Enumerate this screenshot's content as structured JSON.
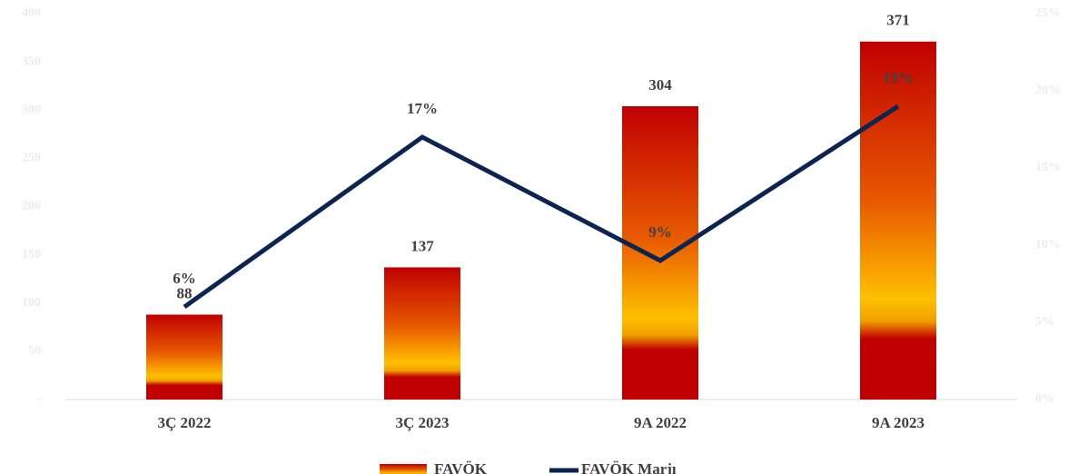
{
  "chart_data": {
    "type": "bar",
    "categories": [
      "3Ç 2022",
      "3Ç 2023",
      "9A 2022",
      "9A 2023"
    ],
    "series": [
      {
        "name": "FAVÖK",
        "color": "#c00000",
        "values": [
          88,
          137,
          304,
          371
        ]
      },
      {
        "name": "FAVÖK Marjı",
        "type": "line",
        "axis": "y2",
        "color": "#0d2452",
        "values": [
          6,
          17,
          9,
          19
        ],
        "value_labels": [
          "6%",
          "17%",
          "9%",
          "19%"
        ]
      }
    ],
    "ylim": [
      0,
      400
    ],
    "yticks": [
      {
        "value": 0,
        "label": "-"
      },
      50,
      100,
      150,
      200,
      250,
      300,
      350,
      400
    ],
    "y2lim": [
      0,
      25
    ],
    "y2ticks": [
      {
        "value": 0,
        "label": "0%"
      },
      {
        "value": 5,
        "label": "5%"
      },
      {
        "value": 10,
        "label": "10%"
      },
      {
        "value": 15,
        "label": "15%"
      },
      {
        "value": 20,
        "label": "20%"
      },
      {
        "value": 25,
        "label": "25%"
      }
    ],
    "legend": "bottom"
  }
}
